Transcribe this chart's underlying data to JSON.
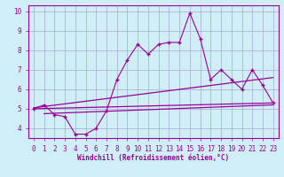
{
  "xlabel": "Windchill (Refroidissement éolien,°C)",
  "bg_color": "#d0eef5",
  "line_color": "#990099",
  "grid_color": "#aaaacc",
  "x_hours": [
    0,
    1,
    2,
    3,
    4,
    5,
    6,
    7,
    8,
    9,
    10,
    11,
    12,
    13,
    14,
    15,
    16,
    17,
    18,
    19,
    20,
    21,
    22,
    23
  ],
  "main_y": [
    5.0,
    5.2,
    4.7,
    4.6,
    3.7,
    3.7,
    4.0,
    4.9,
    6.5,
    7.5,
    8.3,
    7.8,
    8.3,
    8.4,
    8.4,
    9.9,
    8.6,
    6.5,
    7.0,
    6.5,
    6.0,
    7.0,
    6.2,
    5.3
  ],
  "trend1_x": [
    0,
    23
  ],
  "trend1_y": [
    5.0,
    5.3
  ],
  "trend2_x": [
    0,
    23
  ],
  "trend2_y": [
    5.05,
    6.6
  ],
  "trend3_x": [
    1,
    23
  ],
  "trend3_y": [
    4.75,
    5.2
  ],
  "ylim": [
    3.5,
    10.3
  ],
  "xlim": [
    -0.5,
    23.5
  ],
  "yticks": [
    4,
    5,
    6,
    7,
    8,
    9,
    10
  ],
  "xticks": [
    0,
    1,
    2,
    3,
    4,
    5,
    6,
    7,
    8,
    9,
    10,
    11,
    12,
    13,
    14,
    15,
    16,
    17,
    18,
    19,
    20,
    21,
    22,
    23
  ]
}
